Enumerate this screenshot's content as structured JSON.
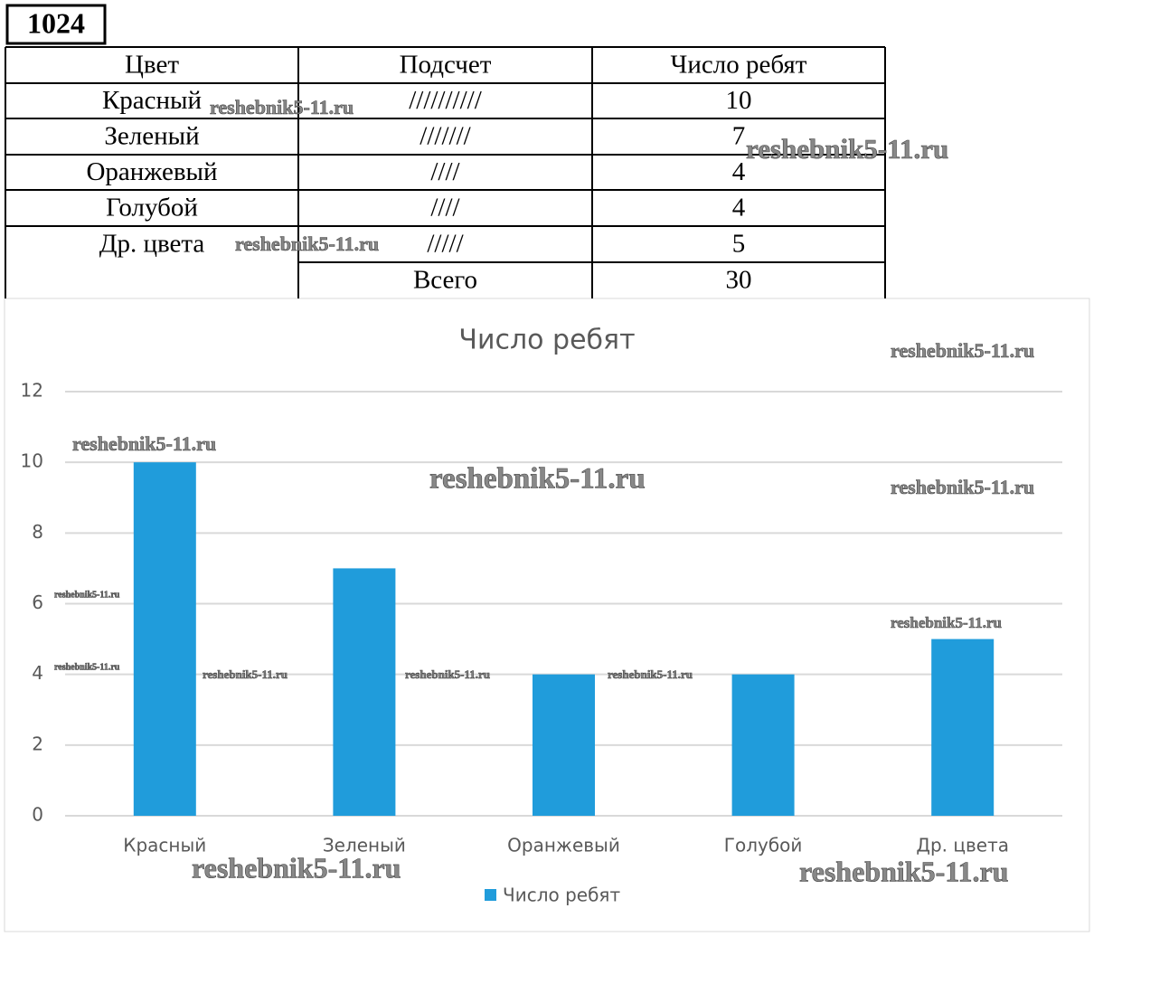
{
  "problem_number": "1024",
  "watermark": "reshebnik5-11.ru",
  "table": {
    "header": [
      "Цвет",
      "Подсчет",
      "Число ребят"
    ],
    "rows": [
      [
        "Красный",
        "//////////",
        10
      ],
      [
        "Зеленый",
        "///////",
        7
      ],
      [
        "Оранжевый",
        "////",
        4
      ],
      [
        "Голубой",
        "////",
        4
      ],
      [
        "Др. цвета",
        "/////",
        5
      ]
    ],
    "total": {
      "label": "Всего",
      "value": 30
    }
  },
  "chart_data": {
    "type": "bar",
    "title": "Число ребят",
    "categories": [
      "Красный",
      "Зеленый",
      "Оранжевый",
      "Голубой",
      "Др. цвета"
    ],
    "series": [
      {
        "name": "Число ребят",
        "color": "#209cdb",
        "values": [
          10,
          7,
          4,
          4,
          5
        ]
      }
    ],
    "ylim": [
      0,
      12
    ],
    "yticks": [
      0,
      2,
      4,
      6,
      8,
      10,
      12
    ],
    "grid": true,
    "legend": "bottom"
  }
}
